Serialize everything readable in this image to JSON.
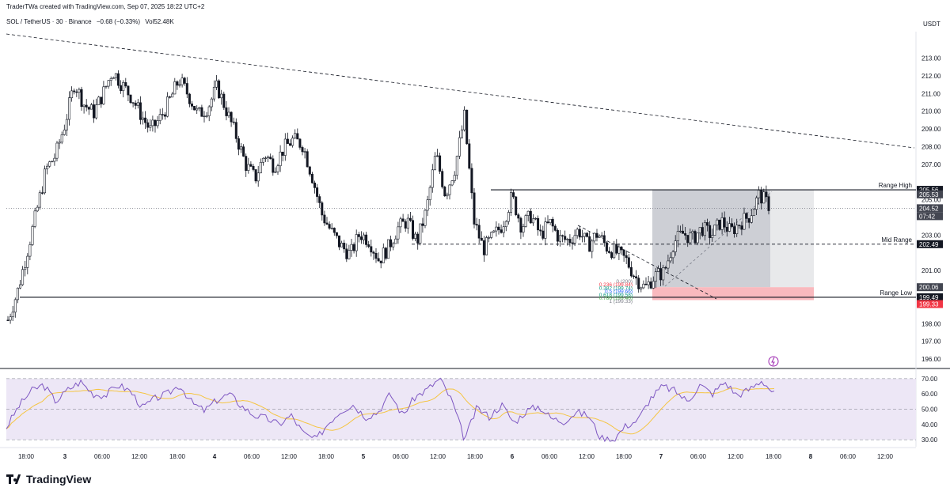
{
  "header": {
    "attribution": "TraderTWa created with TradingView.com, Sep 07, 2025 18:22 UTC+2",
    "symbol": "SOL / TetherUS · 30 · Binance",
    "change": "−0.68 (−0.33%)",
    "volume": "Vol52.48K"
  },
  "currency": "USDT",
  "brand": "TradingView",
  "colors": {
    "bull": "#ffffff",
    "bear": "#131722",
    "rsi_line": "#7e57c2",
    "rsi_ma": "#f5c542",
    "rsi_band": "#ede7f6",
    "target_zone": "#b2b5be",
    "stop_zone": "#f7a8ae",
    "price_tag": "#131722",
    "current_tag": "#434651",
    "low_tag": "#f23645"
  },
  "chart_data": [
    {
      "type": "candlestick",
      "title": "",
      "ylim": [
        195.6,
        214.5
      ],
      "y_ticks": [
        196,
        197,
        198,
        199,
        200,
        201,
        202,
        203,
        204,
        205,
        206,
        207,
        208,
        209,
        210,
        211,
        212,
        213
      ],
      "y_tick_labels": [
        "196.00",
        "197.00",
        "198.00",
        "",
        "",
        "201.00",
        "",
        "203.00",
        "",
        "205.00",
        "",
        "207.00",
        "208.00",
        "209.00",
        "210.00",
        "211.00",
        "212.00",
        "213.00"
      ],
      "x_ticks": [
        "18:00",
        "3",
        "06:00",
        "12:00",
        "18:00",
        "4",
        "06:00",
        "12:00",
        "18:00",
        "5",
        "06:00",
        "12:00",
        "18:00",
        "6",
        "06:00",
        "12:00",
        "18:00",
        "7",
        "06:00",
        "12:00",
        "18:00",
        "8",
        "06:00",
        "12:00"
      ],
      "close_path": [
        198.2,
        199.8,
        202.0,
        204.3,
        206.7,
        207.5,
        209.3,
        211.6,
        210.4,
        209.9,
        211.0,
        212.3,
        211.5,
        210.8,
        209.8,
        208.9,
        209.6,
        210.6,
        211.8,
        210.9,
        209.8,
        210.2,
        211.4,
        210.0,
        208.6,
        207.0,
        206.2,
        207.6,
        206.9,
        207.9,
        208.4,
        208.1,
        206.3,
        204.2,
        203.2,
        202.4,
        201.9,
        203.1,
        202.7,
        201.6,
        202.3,
        203.4,
        203.8,
        202.6,
        204.4,
        207.6,
        205.3,
        206.8,
        209.7,
        203.8,
        202.2,
        202.9,
        203.6,
        205.2,
        203.5,
        204.1,
        203.0,
        203.7,
        202.8,
        202.7,
        203.3,
        202.4,
        203.1,
        202.3,
        202.0,
        201.6,
        200.6,
        200.0,
        200.7,
        200.9,
        202.6,
        203.1,
        202.8,
        203.4,
        203.0,
        203.8,
        203.2,
        203.7,
        204.1,
        205.3,
        204.7
      ],
      "last_price": 204.52,
      "countdown": "07:42",
      "lines": [
        {
          "name": "Range High",
          "value": 205.56
        },
        {
          "name": "Mid Range",
          "value": 202.49
        },
        {
          "name": "Range Low",
          "value": 199.49
        }
      ],
      "price_tags": [
        {
          "value": 205.56,
          "label": "205.56"
        },
        {
          "value": 205.53,
          "label": "205.53"
        },
        {
          "value": 204.52,
          "label": "204.52"
        },
        {
          "value": 202.49,
          "label": "202.49"
        },
        {
          "value": 200.06,
          "label": "200.06"
        },
        {
          "value": 199.49,
          "label": "199.49"
        },
        {
          "value": 199.33,
          "label": "199.33"
        }
      ],
      "fib_labels": [
        "0 (200)",
        "0.236 (199.84)",
        "0.382 (199.74)",
        "0.5 (199.66)",
        "0.618 (199.58)",
        "0.786 (199.46)",
        "1 (199.33)"
      ],
      "position": {
        "entry": 200.06,
        "target": 205.56,
        "stop": 199.33
      }
    },
    {
      "type": "line",
      "title": "",
      "ylim": [
        28,
        72
      ],
      "y_ticks": [
        30,
        40,
        50,
        60,
        70
      ],
      "y_tick_labels": [
        "30.00",
        "40.00",
        "50.00",
        "60.00",
        "70.00"
      ],
      "band": [
        30,
        70
      ],
      "midline": 50,
      "rsi_path": [
        38,
        52,
        62,
        66,
        55,
        63,
        68,
        60,
        59,
        66,
        62,
        51,
        57,
        60,
        66,
        54,
        49,
        56,
        60,
        52,
        46,
        44,
        40,
        46,
        34,
        30,
        41,
        49,
        53,
        45,
        48,
        60,
        46,
        58,
        63,
        70,
        55,
        30,
        51,
        45,
        53,
        41,
        49,
        52,
        44,
        42,
        48,
        46,
        31,
        30,
        39,
        43,
        57,
        65,
        62,
        55,
        66,
        60,
        68,
        59,
        63,
        69,
        60
      ]
    }
  ]
}
